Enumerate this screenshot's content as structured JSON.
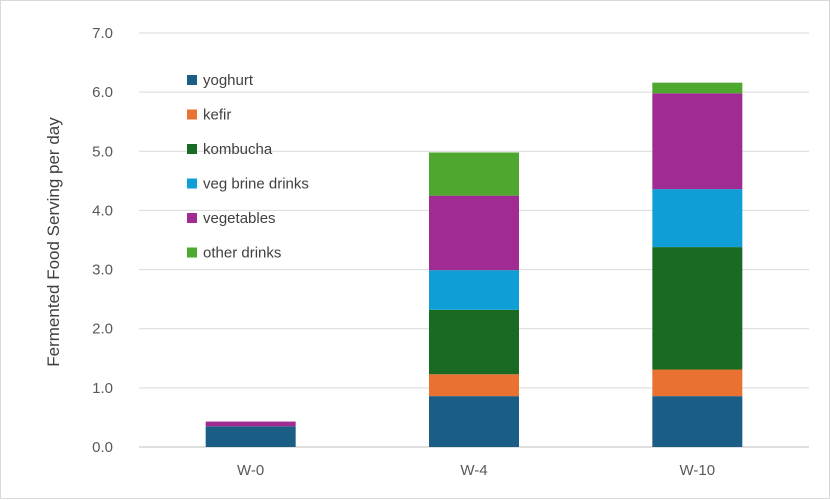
{
  "chart_data": {
    "type": "bar",
    "stacked": true,
    "categories": [
      "W-0",
      "W-4",
      "W-10"
    ],
    "ylabel": "Fermented Food Serving per day",
    "ylim": [
      0,
      7
    ],
    "yticks": [
      "0.0",
      "1.0",
      "2.0",
      "3.0",
      "4.0",
      "5.0",
      "6.0",
      "7.0"
    ],
    "grid": true,
    "legend_position": "top-left",
    "series": [
      {
        "name": "yoghurt",
        "color": "#1a5e85",
        "values": [
          0.35,
          0.86,
          0.86
        ]
      },
      {
        "name": "kefir",
        "color": "#e97132",
        "values": [
          0.0,
          0.37,
          0.45
        ]
      },
      {
        "name": "kombucha",
        "color": "#196b24",
        "values": [
          0.0,
          1.09,
          2.07
        ]
      },
      {
        "name": "veg brine drinks",
        "color": "#0f9ed5",
        "values": [
          0.0,
          0.67,
          0.98
        ]
      },
      {
        "name": "vegetables",
        "color": "#a02b93",
        "values": [
          0.08,
          1.26,
          1.62
        ]
      },
      {
        "name": "other drinks",
        "color": "#4ea72e",
        "values": [
          0.0,
          0.73,
          0.18
        ]
      }
    ]
  }
}
